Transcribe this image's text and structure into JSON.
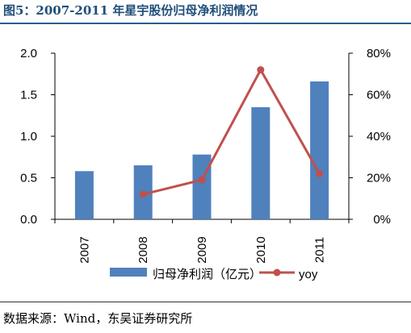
{
  "title": "图5：2007-2011 年星宇股份归母净利润情况",
  "source": "数据来源：Wind，东吴证券研究所",
  "chart_data": {
    "type": "bar",
    "categories": [
      "2007",
      "2008",
      "2009",
      "2010",
      "2011"
    ],
    "series": [
      {
        "name": "归母净利润（亿元）",
        "type": "bar",
        "axis": "left",
        "values": [
          0.58,
          0.65,
          0.78,
          1.35,
          1.66
        ],
        "color": "#4f81bd"
      },
      {
        "name": "yoy",
        "type": "line",
        "axis": "right",
        "values": [
          null,
          12,
          19,
          72,
          22
        ],
        "color": "#c0504d"
      }
    ],
    "y_left": {
      "min": 0,
      "max": 2.0,
      "ticks": [
        "0.0",
        "0.5",
        "1.0",
        "1.5",
        "2.0"
      ]
    },
    "y_right": {
      "min": 0,
      "max": 80,
      "ticks": [
        "0%",
        "20%",
        "40%",
        "60%",
        "80%"
      ]
    },
    "legend_position": "bottom"
  }
}
